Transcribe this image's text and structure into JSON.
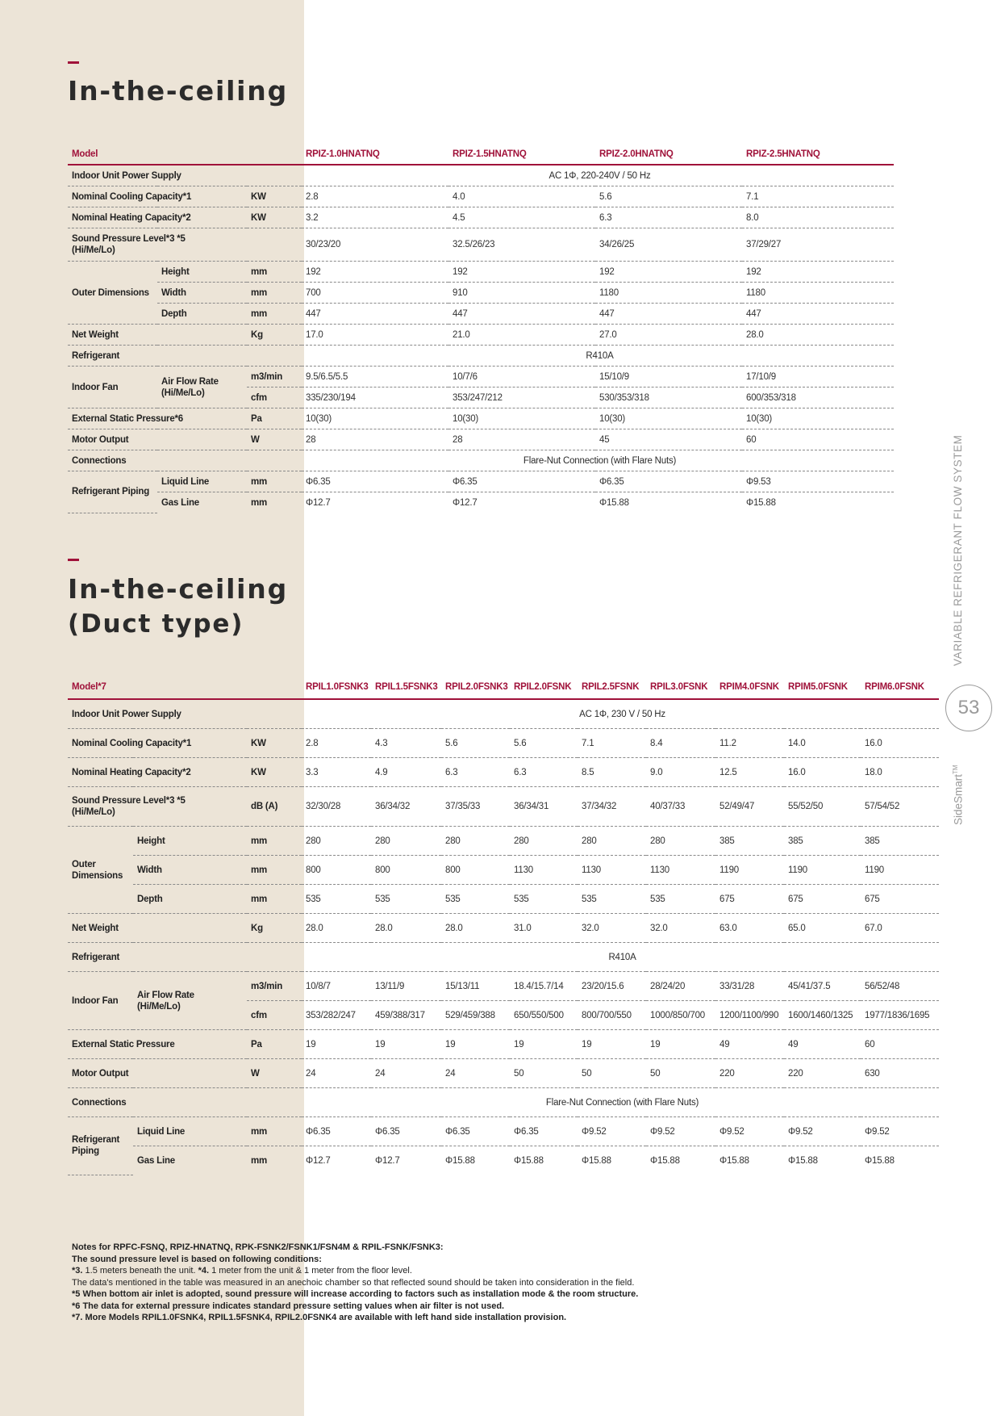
{
  "section1": {
    "title": "In-the-ceiling",
    "headers": [
      "Model",
      "",
      "",
      "RPIZ-1.0HNATNQ",
      "RPIZ-1.5HNATNQ",
      "RPIZ-2.0HNATNQ",
      "RPIZ-2.5HNATNQ"
    ],
    "rows": {
      "power": {
        "label": "Indoor Unit Power Supply",
        "value": "AC 1Φ, 220-240V / 50 Hz"
      },
      "cooling": {
        "label": "Nominal Cooling Capacity*1",
        "unit": "KW",
        "values": [
          "2.8",
          "4.0",
          "5.6",
          "7.1"
        ]
      },
      "heating": {
        "label": "Nominal Heating Capacity*2",
        "unit": "KW",
        "values": [
          "3.2",
          "4.5",
          "6.3",
          "8.0"
        ]
      },
      "sound": {
        "label": "Sound Pressure Level*3 *5 (Hi/Me/Lo)",
        "unit": "",
        "values": [
          "30/23/20",
          "32.5/26/23",
          "34/26/25",
          "37/29/27"
        ]
      },
      "outer": {
        "label": "Outer Dimensions"
      },
      "height": {
        "label": "Height",
        "unit": "mm",
        "values": [
          "192",
          "192",
          "192",
          "192"
        ]
      },
      "width": {
        "label": "Width",
        "unit": "mm",
        "values": [
          "700",
          "910",
          "1180",
          "1180"
        ]
      },
      "depth": {
        "label": "Depth",
        "unit": "mm",
        "values": [
          "447",
          "447",
          "447",
          "447"
        ]
      },
      "weight": {
        "label": "Net Weight",
        "unit": "Kg",
        "values": [
          "17.0",
          "21.0",
          "27.0",
          "28.0"
        ]
      },
      "refrigerant": {
        "label": "Refrigerant",
        "value": "R410A"
      },
      "fan": {
        "label": "Indoor Fan",
        "sublabel": "Air Flow Rate (Hi/Me/Lo)"
      },
      "airflow_m3": {
        "unit": "m3/min",
        "values": [
          "9.5/6.5/5.5",
          "10/7/6",
          "15/10/9",
          "17/10/9"
        ]
      },
      "airflow_cfm": {
        "unit": "cfm",
        "values": [
          "335/230/194",
          "353/247/212",
          "530/353/318",
          "600/353/318"
        ]
      },
      "esp": {
        "label": "External Static Pressure*6",
        "unit": "Pa",
        "values": [
          "10(30)",
          "10(30)",
          "10(30)",
          "10(30)"
        ]
      },
      "motor": {
        "label": "Motor Output",
        "unit": "W",
        "values": [
          "28",
          "28",
          "45",
          "60"
        ]
      },
      "connections": {
        "label": "Connections",
        "value": "Flare-Nut Connection (with Flare Nuts)"
      },
      "piping": {
        "label": "Refrigerant Piping"
      },
      "liquid": {
        "label": "Liquid Line",
        "unit": "mm",
        "values": [
          "Φ6.35",
          "Φ6.35",
          "Φ6.35",
          "Φ9.53"
        ]
      },
      "gas": {
        "label": "Gas Line",
        "unit": "mm",
        "values": [
          "Φ12.7",
          "Φ12.7",
          "Φ15.88",
          "Φ15.88"
        ]
      }
    }
  },
  "section2": {
    "title": "In-the-ceiling",
    "subtitle": "(Duct type)",
    "headers": [
      "Model*7",
      "",
      "",
      "RPIL1.0FSNK3",
      "RPIL1.5FSNK3",
      "RPIL2.0FSNK3",
      "RPIL2.0FSNK",
      "RPIL2.5FSNK",
      "RPIL3.0FSNK",
      "RPIM4.0FSNK",
      "RPIM5.0FSNK",
      "RPIM6.0FSNK"
    ],
    "rows": {
      "power": {
        "label": "Indoor Unit Power Supply",
        "value": "AC 1Φ, 230 V / 50 Hz"
      },
      "cooling": {
        "label": "Nominal Cooling Capacity*1",
        "unit": "KW",
        "values": [
          "2.8",
          "4.3",
          "5.6",
          "5.6",
          "7.1",
          "8.4",
          "11.2",
          "14.0",
          "16.0"
        ]
      },
      "heating": {
        "label": "Nominal Heating Capacity*2",
        "unit": "KW",
        "values": [
          "3.3",
          "4.9",
          "6.3",
          "6.3",
          "8.5",
          "9.0",
          "12.5",
          "16.0",
          "18.0"
        ]
      },
      "sound": {
        "label": "Sound Pressure Level*3 *5 (Hi/Me/Lo)",
        "unit": "dB (A)",
        "values": [
          "32/30/28",
          "36/34/32",
          "37/35/33",
          "36/34/31",
          "37/34/32",
          "40/37/33",
          "52/49/47",
          "55/52/50",
          "57/54/52"
        ]
      },
      "outer": {
        "label": "Outer Dimensions"
      },
      "height": {
        "label": "Height",
        "unit": "mm",
        "values": [
          "280",
          "280",
          "280",
          "280",
          "280",
          "280",
          "385",
          "385",
          "385"
        ]
      },
      "width": {
        "label": "Width",
        "unit": "mm",
        "values": [
          "800",
          "800",
          "800",
          "1130",
          "1130",
          "1130",
          "1190",
          "1190",
          "1190"
        ]
      },
      "depth": {
        "label": "Depth",
        "unit": "mm",
        "values": [
          "535",
          "535",
          "535",
          "535",
          "535",
          "535",
          "675",
          "675",
          "675"
        ]
      },
      "weight": {
        "label": "Net Weight",
        "unit": "Kg",
        "values": [
          "28.0",
          "28.0",
          "28.0",
          "31.0",
          "32.0",
          "32.0",
          "63.0",
          "65.0",
          "67.0"
        ]
      },
      "refrigerant": {
        "label": "Refrigerant",
        "value": "R410A"
      },
      "fan": {
        "label": "Indoor Fan",
        "sublabel": "Air Flow Rate (Hi/Me/Lo)"
      },
      "airflow_m3": {
        "unit": "m3/min",
        "values": [
          "10/8/7",
          "13/11/9",
          "15/13/11",
          "18.4/15.7/14",
          "23/20/15.6",
          "28/24/20",
          "33/31/28",
          "45/41/37.5",
          "56/52/48"
        ]
      },
      "airflow_cfm": {
        "unit": "cfm",
        "values": [
          "353/282/247",
          "459/388/317",
          "529/459/388",
          "650/550/500",
          "800/700/550",
          "1000/850/700",
          "1200/1100/990",
          "1600/1460/1325",
          "1977/1836/1695"
        ]
      },
      "esp": {
        "label": "External Static Pressure",
        "unit": "Pa",
        "values": [
          "19",
          "19",
          "19",
          "19",
          "19",
          "19",
          "49",
          "49",
          "60"
        ]
      },
      "motor": {
        "label": "Motor Output",
        "unit": "W",
        "values": [
          "24",
          "24",
          "24",
          "50",
          "50",
          "50",
          "220",
          "220",
          "630"
        ]
      },
      "connections": {
        "label": "Connections",
        "value": "Flare-Nut Connection (with Flare Nuts)"
      },
      "piping": {
        "label": "Refrigerant Piping"
      },
      "liquid": {
        "label": "Liquid Line",
        "unit": "mm",
        "values": [
          "Φ6.35",
          "Φ6.35",
          "Φ6.35",
          "Φ6.35",
          "Φ9.52",
          "Φ9.52",
          "Φ9.52",
          "Φ9.52",
          "Φ9.52"
        ]
      },
      "gas": {
        "label": "Gas Line",
        "unit": "mm",
        "values": [
          "Φ12.7",
          "Φ12.7",
          "Φ15.88",
          "Φ15.88",
          "Φ15.88",
          "Φ15.88",
          "Φ15.88",
          "Φ15.88",
          "Φ15.88"
        ]
      }
    }
  },
  "notes": {
    "line1": "Notes for RPFC-FSNQ, RPIZ-HNATNQ, RPK-FSNK2/FSNK1/FSN4M & RPIL-FSNK/FSNK3:",
    "line2": "The sound pressure level is based on following conditions:",
    "line3a": "*3.",
    "line3b": " 1.5 meters beneath the unit. ",
    "line3c": "*4.",
    "line3d": " 1 meter from the unit & 1 meter from the floor level.",
    "line4": "The data's mentioned in the table was measured in an anechoic chamber so that reflected sound should be taken into consideration in the field.",
    "line5": "*5 When bottom air inlet is adopted, sound pressure will increase according to factors such as installation mode & the room structure.",
    "line6": "*6 The data for external pressure indicates standard pressure setting values when air filter is not used.",
    "line7": "*7. More Models RPIL1.0FSNK4, RPIL1.5FSNK4, RPIL2.0FSNK4 are available with left hand side installation provision."
  },
  "sidebar": {
    "system_label": "VARIABLE REFRIGERANT FLOW SYSTEM",
    "page_number": "53",
    "brand": "SideSmart",
    "brand_tm": "TM"
  }
}
